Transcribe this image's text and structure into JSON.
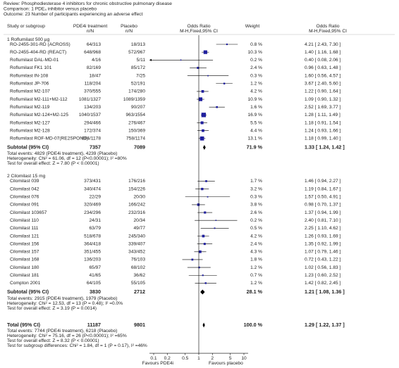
{
  "chart_data": {
    "type": "forest",
    "header": [
      "Review:   Phosphodiesterase 4 inhibitors for chronic obstructive pulmonary disease",
      "Comparison:   1 PDE₄ inhibitor versus placebo",
      "Outcome:   23 Number of participants experiencing an adverse effect"
    ],
    "columns": {
      "study": "Study or subgroup",
      "treatment": "PDE4i treatment",
      "treatment_unit": "n/N",
      "placebo": "Placebo",
      "placebo_unit": "n/N",
      "plot": "Odds Ratio",
      "plot_method": "M-H,Fixed,95% CI",
      "weight": "Weight",
      "effect": "Odds Ratio",
      "effect_method": "M-H,Fixed,95% CI"
    },
    "groups": [
      {
        "name": "1 Roflumilast 500 µg",
        "studies": [
          {
            "name": "RO-2455-301-RD (ACROSS)",
            "treatment": "64/313",
            "placebo": "18/313",
            "weight": 0.8,
            "weight_label": "0.8 %",
            "or": 4.21,
            "lo": 2.43,
            "hi": 7.3,
            "ci_label": "4.21 [ 2.43, 7.30 ]"
          },
          {
            "name": "RO-2455-404-RD (REACT)",
            "treatment": "648/968",
            "placebo": "572/967",
            "weight": 10.3,
            "weight_label": "10.3 %",
            "or": 1.4,
            "lo": 1.16,
            "hi": 1.68,
            "ci_label": "1.40 [ 1.16, 1.68 ]"
          },
          {
            "name": "Roflumilast DAL-MD-01",
            "treatment": "4/16",
            "placebo": "5/11",
            "weight": 0.2,
            "weight_label": "0.2 %",
            "or": 0.4,
            "lo": 0.08,
            "hi": 2.06,
            "ci_label": "0.40 [ 0.08, 2.06 ]"
          },
          {
            "name": "Roflumilast FK1 101",
            "treatment": "82/169",
            "placebo": "85/172",
            "weight": 2.4,
            "weight_label": "2.4 %",
            "or": 0.96,
            "lo": 0.63,
            "hi": 1.48,
            "ci_label": "0.96 [ 0.63, 1.48 ]"
          },
          {
            "name": "Roflumilast IN-108",
            "treatment": "18/47",
            "placebo": "7/25",
            "weight": 0.3,
            "weight_label": "0.3 %",
            "or": 1.6,
            "lo": 0.56,
            "hi": 4.57,
            "ci_label": "1.60 [ 0.56, 4.57 ]"
          },
          {
            "name": "Roflumilast JP-706",
            "treatment": "118/204",
            "placebo": "52/191",
            "weight": 1.2,
            "weight_label": "1.2 %",
            "or": 3.67,
            "lo": 2.4,
            "hi": 5.6,
            "ci_label": "3.67 [ 2.40, 5.60 ]"
          },
          {
            "name": "Roflumilast M2-107",
            "treatment": "370/555",
            "placebo": "174/280",
            "weight": 4.2,
            "weight_label": "4.2 %",
            "or": 1.22,
            "lo": 0.9,
            "hi": 1.64,
            "ci_label": "1.22 [ 0.90, 1.64 ]"
          },
          {
            "name": "Roflumilast M2-111+M2-112",
            "treatment": "1081/1327",
            "placebo": "1089/1359",
            "weight": 10.9,
            "weight_label": "10.9 %",
            "or": 1.09,
            "lo": 0.9,
            "hi": 1.32,
            "ci_label": "1.09 [ 0.90, 1.32 ]"
          },
          {
            "name": "Roflumilast M2-119",
            "treatment": "134/203",
            "placebo": "90/207",
            "weight": 1.6,
            "weight_label": "1.6 %",
            "or": 2.52,
            "lo": 1.69,
            "hi": 3.77,
            "ci_label": "2.52 [ 1.69, 3.77 ]"
          },
          {
            "name": "Roflumilast M2-124+M2-125",
            "treatment": "1040/1537",
            "placebo": "963/1554",
            "weight": 16.9,
            "weight_label": "16.9 %",
            "or": 1.28,
            "lo": 1.11,
            "hi": 1.49,
            "ci_label": "1.28 [ 1.11, 1.49 ]"
          },
          {
            "name": "Roflumilast M2-127",
            "treatment": "294/466",
            "placebo": "276/467",
            "weight": 5.5,
            "weight_label": "5.5 %",
            "or": 1.18,
            "lo": 0.91,
            "hi": 1.54,
            "ci_label": "1.18 [ 0.91, 1.54 ]"
          },
          {
            "name": "Roflumilast M2-128",
            "treatment": "172/374",
            "placebo": "150/369",
            "weight": 4.4,
            "weight_label": "4.4 %",
            "or": 1.24,
            "lo": 0.93,
            "hi": 1.66,
            "ci_label": "1.24 [ 0.93, 1.66 ]"
          },
          {
            "name": "Roflumilast ROF-MD-07(RE2SPOND)",
            "treatment": "804/1178",
            "placebo": "758/1174",
            "weight": 13.1,
            "weight_label": "13.1 %",
            "or": 1.18,
            "lo": 0.99,
            "hi": 1.4,
            "ci_label": "1.18 [ 0.99, 1.40 ]"
          }
        ],
        "subtotal": {
          "name": "Subtotal (95% CI)",
          "treatment": 7357,
          "placebo": 7089,
          "weight_label": "71.9 %",
          "or": 1.33,
          "lo": 1.24,
          "hi": 1.42,
          "ci_label": "1.33 [ 1.24, 1.42 ]"
        },
        "notes": [
          "Total events: 4829 (PDE4i treatment), 4239 (Placebo)",
          "Heterogeneity: Chi² = 61.06, df = 12 (P<0.00001); I² =80%",
          "Test for overall effect: Z = 7.80 (P < 0.00001)"
        ]
      },
      {
        "name": "2 Cilomilast 15 mg",
        "studies": [
          {
            "name": "Cilomilast 039",
            "treatment": "373/431",
            "placebo": "176/216",
            "weight": 1.7,
            "weight_label": "1.7 %",
            "or": 1.46,
            "lo": 0.94,
            "hi": 2.27,
            "ci_label": "1.46 [ 0.94, 2.27 ]"
          },
          {
            "name": "Cilomilast 042",
            "treatment": "340/474",
            "placebo": "154/226",
            "weight": 3.2,
            "weight_label": "3.2 %",
            "or": 1.19,
            "lo": 0.84,
            "hi": 1.67,
            "ci_label": "1.19 [ 0.84, 1.67 ]"
          },
          {
            "name": "Cilomilast 076",
            "treatment": "22/29",
            "placebo": "20/30",
            "weight": 0.3,
            "weight_label": "0.3 %",
            "or": 1.57,
            "lo": 0.5,
            "hi": 4.91,
            "ci_label": "1.57 [ 0.50, 4.91 ]"
          },
          {
            "name": "Cilomilast 091",
            "treatment": "320/469",
            "placebo": "166/242",
            "weight": 3.8,
            "weight_label": "3.8 %",
            "or": 0.98,
            "lo": 0.7,
            "hi": 1.37,
            "ci_label": "0.98 [ 0.70, 1.37 ]"
          },
          {
            "name": "Cilomilast 103657",
            "treatment": "234/296",
            "placebo": "232/316",
            "weight": 2.6,
            "weight_label": "2.6 %",
            "or": 1.37,
            "lo": 0.94,
            "hi": 1.99,
            "ci_label": "1.37 [ 0.94, 1.99 ]"
          },
          {
            "name": "Cilomilast 110",
            "treatment": "24/31",
            "placebo": "20/34",
            "weight": 0.2,
            "weight_label": "0.2 %",
            "or": 2.4,
            "lo": 0.81,
            "hi": 7.1,
            "ci_label": "2.40 [ 0.81, 7.10 ]"
          },
          {
            "name": "Cilomilast 111",
            "treatment": "63/79",
            "placebo": "49/77",
            "weight": 0.5,
            "weight_label": "0.5 %",
            "or": 2.25,
            "lo": 1.1,
            "hi": 4.62,
            "ci_label": "2.25 [ 1.10, 4.62 ]"
          },
          {
            "name": "Cilomilast 121",
            "treatment": "518/678",
            "placebo": "245/340",
            "weight": 4.2,
            "weight_label": "4.2 %",
            "or": 1.26,
            "lo": 0.93,
            "hi": 1.69,
            "ci_label": "1.26 [ 0.93, 1.69 ]"
          },
          {
            "name": "Cilomilast 156",
            "treatment": "364/418",
            "placebo": "339/407",
            "weight": 2.4,
            "weight_label": "2.4 %",
            "or": 1.35,
            "lo": 0.92,
            "hi": 1.99,
            "ci_label": "1.35 [ 0.92, 1.99 ]"
          },
          {
            "name": "Cilomilast 157",
            "treatment": "351/455",
            "placebo": "343/452",
            "weight": 4.3,
            "weight_label": "4.3 %",
            "or": 1.07,
            "lo": 0.79,
            "hi": 1.46,
            "ci_label": "1.07 [ 0.79, 1.46 ]"
          },
          {
            "name": "Cilomilast 168",
            "treatment": "136/203",
            "placebo": "76/103",
            "weight": 1.8,
            "weight_label": "1.8 %",
            "or": 0.72,
            "lo": 0.43,
            "hi": 1.22,
            "ci_label": "0.72 [ 0.43, 1.22 ]"
          },
          {
            "name": "Cilomilast 180",
            "treatment": "65/97",
            "placebo": "68/102",
            "weight": 1.2,
            "weight_label": "1.2 %",
            "or": 1.02,
            "lo": 0.56,
            "hi": 1.83,
            "ci_label": "1.02 [ 0.56, 1.83 ]"
          },
          {
            "name": "Cilomilast 181",
            "treatment": "41/65",
            "placebo": "36/62",
            "weight": 0.7,
            "weight_label": "0.7 %",
            "or": 1.23,
            "lo": 0.6,
            "hi": 2.52,
            "ci_label": "1.23 [ 0.60, 2.52 ]"
          },
          {
            "name": "Compton 2001",
            "treatment": "64/105",
            "placebo": "55/105",
            "weight": 1.2,
            "weight_label": "1.2 %",
            "or": 1.42,
            "lo": 0.82,
            "hi": 2.45,
            "ci_label": "1.42 [ 0.82, 2.45 ]"
          }
        ],
        "subtotal": {
          "name": "Subtotal (95% CI)",
          "treatment": 3830,
          "placebo": 2712,
          "weight_label": "28.1 %",
          "or": 1.21,
          "lo": 1.08,
          "hi": 1.36,
          "ci_label": "1.21 [ 1.08, 1.36 ]"
        },
        "notes": [
          "Total events: 2915 (PDE4i treatment), 1979 (Placebo)",
          "Heterogeneity: Chi² = 12.53, df = 13 (P = 0.48); I² =0.0%",
          "Test for overall effect: Z = 3.19 (P = 0.0014)"
        ]
      }
    ],
    "total": {
      "name": "Total (95% CI)",
      "treatment": 11187,
      "placebo": 9801,
      "weight_label": "100.0 %",
      "or": 1.29,
      "lo": 1.22,
      "hi": 1.37,
      "ci_label": "1.29 [ 1.22, 1.37 ]",
      "notes": [
        "Total events: 7744 (PDE4i treatment), 6218 (Placebo)",
        "Heterogeneity: Chi² = 75.16, df = 26 (P<0.00001); I² =65%",
        "Test for overall effect: Z = 8.32 (P < 0.00001)",
        "Test for subgroup differences: Chi² = 1.84, df = 1 (P = 0.17), I² =46%"
      ]
    },
    "xscale": "log",
    "xlim": [
      0.1,
      10
    ],
    "xticks": [
      0.1,
      0.2,
      0.5,
      1,
      2,
      5,
      10
    ],
    "reference_line": 1,
    "favours_left": "Favours PDE4i",
    "favours_right": "Favours placebo",
    "square_color": "#1f1f9e",
    "diamond_color": "#000000"
  }
}
